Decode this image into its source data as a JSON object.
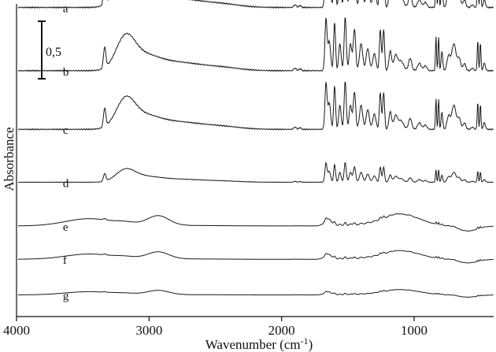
{
  "chart_data": {
    "type": "line",
    "title": "",
    "xlabel_main": "Wavenumber (cm",
    "xlabel_sup": "-1",
    "xlabel_close": ")",
    "ylabel": "Absorbance",
    "xlim": [
      4000,
      400
    ],
    "x_reversed": true,
    "x_ticks": [
      {
        "value": 4000,
        "label": "4000"
      },
      {
        "value": 3000,
        "label": "3000"
      },
      {
        "value": 2000,
        "label": "2000"
      },
      {
        "value": 1000,
        "label": "1000"
      }
    ],
    "y_ticks_shown": false,
    "grid": false,
    "scale_bar": {
      "label": "0,5",
      "value": 0.5
    },
    "series_color": "#1a1a1a",
    "series": [
      {
        "name": "a",
        "baseline": 2.62,
        "amplitude": 1.0
      },
      {
        "name": "b",
        "baseline": 2.07,
        "amplitude": 0.95
      },
      {
        "name": "c",
        "baseline": 1.56,
        "amplitude": 0.85
      },
      {
        "name": "d",
        "baseline": 1.1,
        "amplitude": 0.35
      },
      {
        "name": "e",
        "baseline": 0.72,
        "amplitude": 0.18
      },
      {
        "name": "f",
        "baseline": 0.43,
        "amplitude": 0.13
      },
      {
        "name": "g",
        "baseline": 0.12,
        "amplitude": 0.08
      }
    ]
  }
}
